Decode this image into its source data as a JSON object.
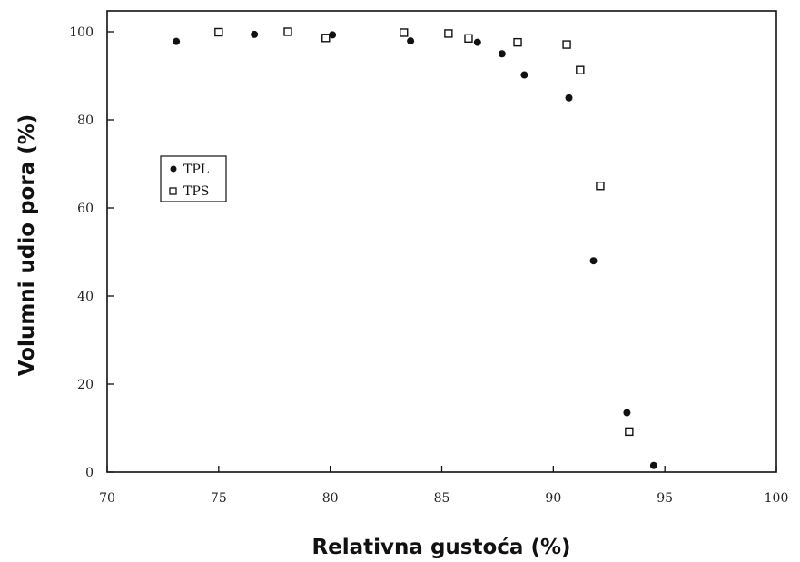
{
  "chart_data": {
    "type": "scatter",
    "xlabel": "Relativna gustoća (%)",
    "ylabel": "Volumni udio pora (%)",
    "xlim": [
      70,
      100
    ],
    "ylim": [
      0,
      105
    ],
    "xticks": [
      "70",
      "75",
      "80",
      "85",
      "90",
      "95",
      "100"
    ],
    "yticks": [
      "0",
      "20",
      "40",
      "60",
      "80",
      "100"
    ],
    "grid": false,
    "legend_position": "left",
    "series": [
      {
        "name": "TPL",
        "marker": "filled-circle",
        "color": "#111111",
        "points": [
          [
            73.1,
            97.8
          ],
          [
            76.6,
            99.4
          ],
          [
            80.1,
            99.3
          ],
          [
            83.6,
            97.9
          ],
          [
            86.6,
            97.6
          ],
          [
            87.7,
            95.0
          ],
          [
            88.7,
            90.2
          ],
          [
            90.7,
            85.0
          ],
          [
            91.8,
            48.0
          ],
          [
            93.3,
            13.5
          ],
          [
            94.5,
            1.5
          ]
        ]
      },
      {
        "name": "TPS",
        "marker": "hollow-square",
        "color": "#111111",
        "points": [
          [
            75.0,
            99.9
          ],
          [
            78.1,
            100.0
          ],
          [
            79.8,
            98.6
          ],
          [
            83.3,
            99.8
          ],
          [
            85.3,
            99.6
          ],
          [
            86.2,
            98.5
          ],
          [
            88.4,
            97.6
          ],
          [
            90.6,
            97.1
          ],
          [
            91.2,
            91.3
          ],
          [
            92.1,
            65.0
          ],
          [
            93.4,
            9.2
          ]
        ]
      }
    ]
  }
}
